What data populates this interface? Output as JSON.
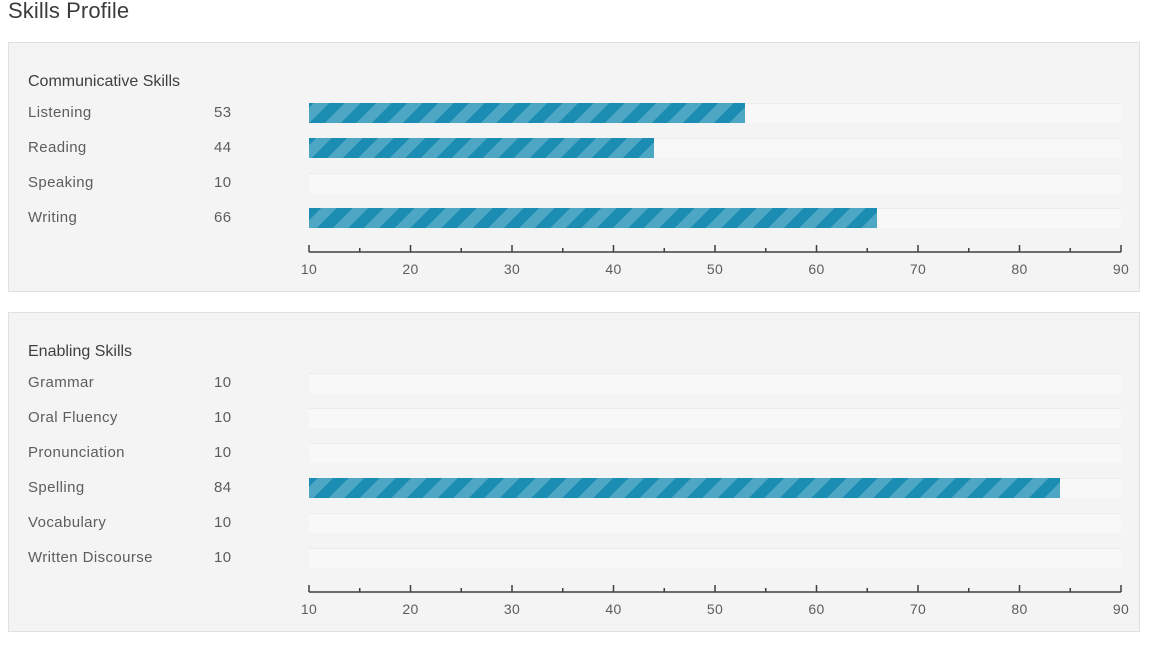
{
  "page_title": "Skills Profile",
  "chart_data": [
    {
      "type": "bar",
      "orientation": "horizontal",
      "title": "Communicative Skills",
      "categories": [
        "Listening",
        "Reading",
        "Speaking",
        "Writing"
      ],
      "values": [
        53,
        44,
        10,
        66
      ],
      "value_labels": [
        "53",
        "44",
        "10",
        "66"
      ],
      "xlim": [
        10,
        90
      ],
      "x_ticks": [
        10,
        20,
        30,
        40,
        50,
        60,
        70,
        80,
        90
      ],
      "x_tick_labels": [
        "10",
        "20",
        "30",
        "40",
        "50",
        "60",
        "70",
        "80",
        "90"
      ],
      "xlabel": "",
      "ylabel": "",
      "bar_color": "#1b8db3",
      "grid": false,
      "legend": "none"
    },
    {
      "type": "bar",
      "orientation": "horizontal",
      "title": "Enabling Skills",
      "categories": [
        "Grammar",
        "Oral Fluency",
        "Pronunciation",
        "Spelling",
        "Vocabulary",
        "Written Discourse"
      ],
      "values": [
        10,
        10,
        10,
        84,
        10,
        10
      ],
      "value_labels": [
        "10",
        "10",
        "10",
        "84",
        "10",
        "10"
      ],
      "xlim": [
        10,
        90
      ],
      "x_ticks": [
        10,
        20,
        30,
        40,
        50,
        60,
        70,
        80,
        90
      ],
      "x_tick_labels": [
        "10",
        "20",
        "30",
        "40",
        "50",
        "60",
        "70",
        "80",
        "90"
      ],
      "xlabel": "",
      "ylabel": "",
      "bar_color": "#1b8db3",
      "grid": false,
      "legend": "none"
    }
  ]
}
